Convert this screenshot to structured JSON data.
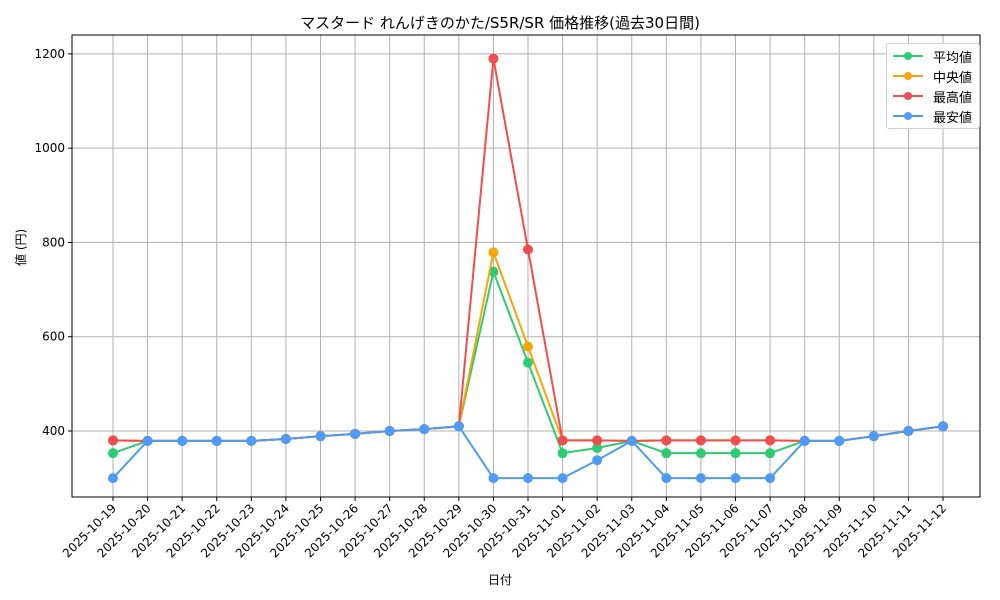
{
  "chart_data": {
    "type": "line",
    "title": "マスタード れんげきのかた/S5R/SR 価格推移(過去30日間)",
    "xlabel": "日付",
    "ylabel": "値 (円)",
    "ylim": [
      260,
      1240
    ],
    "yticks": [
      400,
      600,
      800,
      1000,
      1200
    ],
    "grid": true,
    "legend_position": "upper right",
    "categories": [
      "2025-10-19",
      "2025-10-20",
      "2025-10-21",
      "2025-10-22",
      "2025-10-23",
      "2025-10-24",
      "2025-10-25",
      "2025-10-26",
      "2025-10-27",
      "2025-10-28",
      "2025-10-29",
      "2025-10-30",
      "2025-10-31",
      "2025-11-01",
      "2025-11-02",
      "2025-11-03",
      "2025-11-04",
      "2025-11-05",
      "2025-11-06",
      "2025-11-07",
      "2025-11-08",
      "2025-11-09",
      "2025-11-10",
      "2025-11-11",
      "2025-11-12"
    ],
    "series": [
      {
        "name": "平均値",
        "color": "#2ecc71",
        "values": [
          353,
          379,
          379,
          379,
          379,
          383,
          389,
          394,
          400,
          404,
          410,
          738,
          545,
          353,
          364,
          379,
          353,
          353,
          353,
          353,
          379,
          379,
          389,
          400,
          410
        ]
      },
      {
        "name": "中央値",
        "color": "#f5a60a",
        "values": [
          380,
          379,
          379,
          379,
          379,
          383,
          389,
          394,
          400,
          404,
          410,
          779,
          579,
          380,
          380,
          379,
          380,
          380,
          380,
          380,
          379,
          379,
          389,
          400,
          410
        ]
      },
      {
        "name": "最高値",
        "color": "#f04e4e",
        "values": [
          380,
          379,
          379,
          379,
          379,
          383,
          389,
          394,
          400,
          404,
          410,
          1190,
          785,
          380,
          380,
          379,
          380,
          380,
          380,
          380,
          379,
          379,
          389,
          400,
          410
        ]
      },
      {
        "name": "最安値",
        "color": "#4d9bf5",
        "values": [
          300,
          379,
          379,
          379,
          379,
          383,
          389,
          394,
          400,
          404,
          410,
          300,
          300,
          300,
          338,
          379,
          300,
          300,
          300,
          300,
          379,
          379,
          389,
          400,
          410
        ]
      }
    ]
  }
}
